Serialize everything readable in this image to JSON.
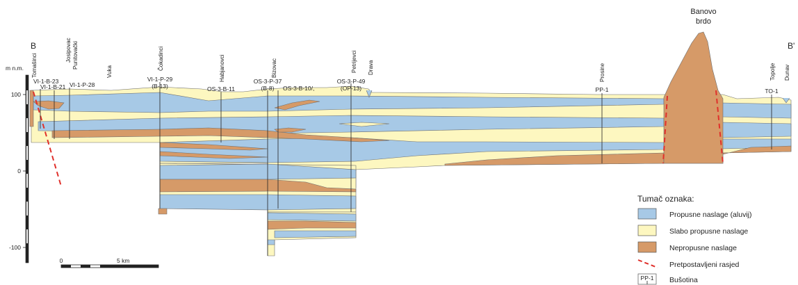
{
  "section_ends": {
    "left": "B",
    "right": "B'"
  },
  "vertical_axis": {
    "unit_label": "m n.m.",
    "ticks": [
      "100",
      "0",
      "-100"
    ]
  },
  "scale_bar": {
    "start": "0",
    "end": "5 km"
  },
  "mountain": {
    "line1": "Banovo",
    "line2": "brdo"
  },
  "places": [
    "Tomašinci",
    "Josipovac",
    "Punitovački",
    "Vuka",
    "Čokadinci",
    "Habjanovci",
    "Bizovac",
    "Petrijevci",
    "Drava",
    "Prosine",
    "Topolje",
    "Dunav"
  ],
  "boreholes": [
    {
      "line1": "VI-1-B-23",
      "line2": ""
    },
    {
      "line1": "VI-1-B-21",
      "line2": ""
    },
    {
      "line1": "VI-1-P-28",
      "line2": ""
    },
    {
      "line1": "VI-1-P-29",
      "line2": "(B-13)"
    },
    {
      "line1": "OS-3-B-11",
      "line2": ""
    },
    {
      "line1": "OS-3-P-37",
      "line2": "(B-8)"
    },
    {
      "line1": "OS-3-B-10/,",
      "line2": ""
    },
    {
      "line1": "OS-3-P-49",
      "line2": "(OP-13)"
    },
    {
      "line1": "PP-1",
      "line2": ""
    },
    {
      "line1": "TO-1",
      "line2": ""
    }
  ],
  "legend": {
    "title": "Tumač oznaka:",
    "items": [
      {
        "label": "Propusne naslage (aluvij)",
        "color": "#a7c9e6"
      },
      {
        "label": "Slabo propusne naslage",
        "color": "#fdf7c0"
      },
      {
        "label": "Nepropusne naslage",
        "color": "#d69a68"
      },
      {
        "label": "Pretpostavljeni rasjed",
        "color": "#e0302b"
      },
      {
        "label": "Bušotina",
        "symbol_label": "PP-1"
      }
    ]
  }
}
